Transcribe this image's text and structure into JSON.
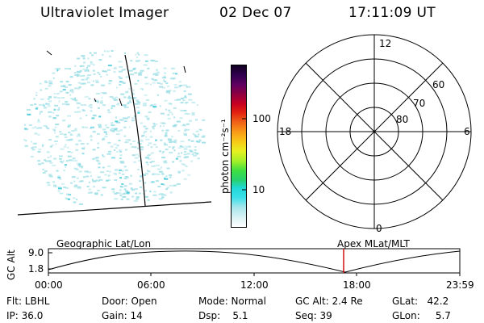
{
  "header": {
    "instrument": "Ultraviolet Imager",
    "date": "02 Dec 07",
    "time": "17:11:09 UT"
  },
  "colorbar": {
    "unit_label": "photon cm⁻²s⁻¹",
    "ticks": [
      "100",
      "10"
    ],
    "colors": [
      "#ffffff",
      "#d9f2f5",
      "#a8e6ec",
      "#3ee0e8",
      "#22d8d8",
      "#28d070",
      "#40e040",
      "#a8f028",
      "#e8f020",
      "#f8c818",
      "#f89818",
      "#f06018",
      "#e02010",
      "#c80020",
      "#900040",
      "#600060",
      "#300050",
      "#100020"
    ]
  },
  "polar_plot": {
    "mlt_labels": {
      "top": "12",
      "left": "18",
      "right": "6",
      "bottom": "0"
    },
    "lat_labels": [
      "60",
      "70",
      "80"
    ]
  },
  "bottom_panel": {
    "left_label": "Geographic Lat/Lon",
    "right_label": "Apex MLat/MLT",
    "y_axis_label": "GC Alt",
    "y_ticks": [
      "9.0",
      "1.8"
    ],
    "x_ticks": [
      "00:00",
      "06:00",
      "12:00",
      "18:00",
      "23:59"
    ]
  },
  "status": {
    "flt": "Flt: LBHL",
    "ip": "IP: 36.0",
    "door": "Door: Open",
    "gain": "Gain: 14",
    "mode": "Mode: Normal",
    "dsp": "Dsp:    5.1",
    "gc_alt": "GC Alt: 2.4 Re",
    "seq": "Seq: 39",
    "glat": "GLat:   42.2",
    "glon": "GLon:     5.7"
  },
  "colors": {
    "marker": "#d01010",
    "speckle": "#9fdfe6",
    "speckle_strong": "#40c8d8"
  }
}
